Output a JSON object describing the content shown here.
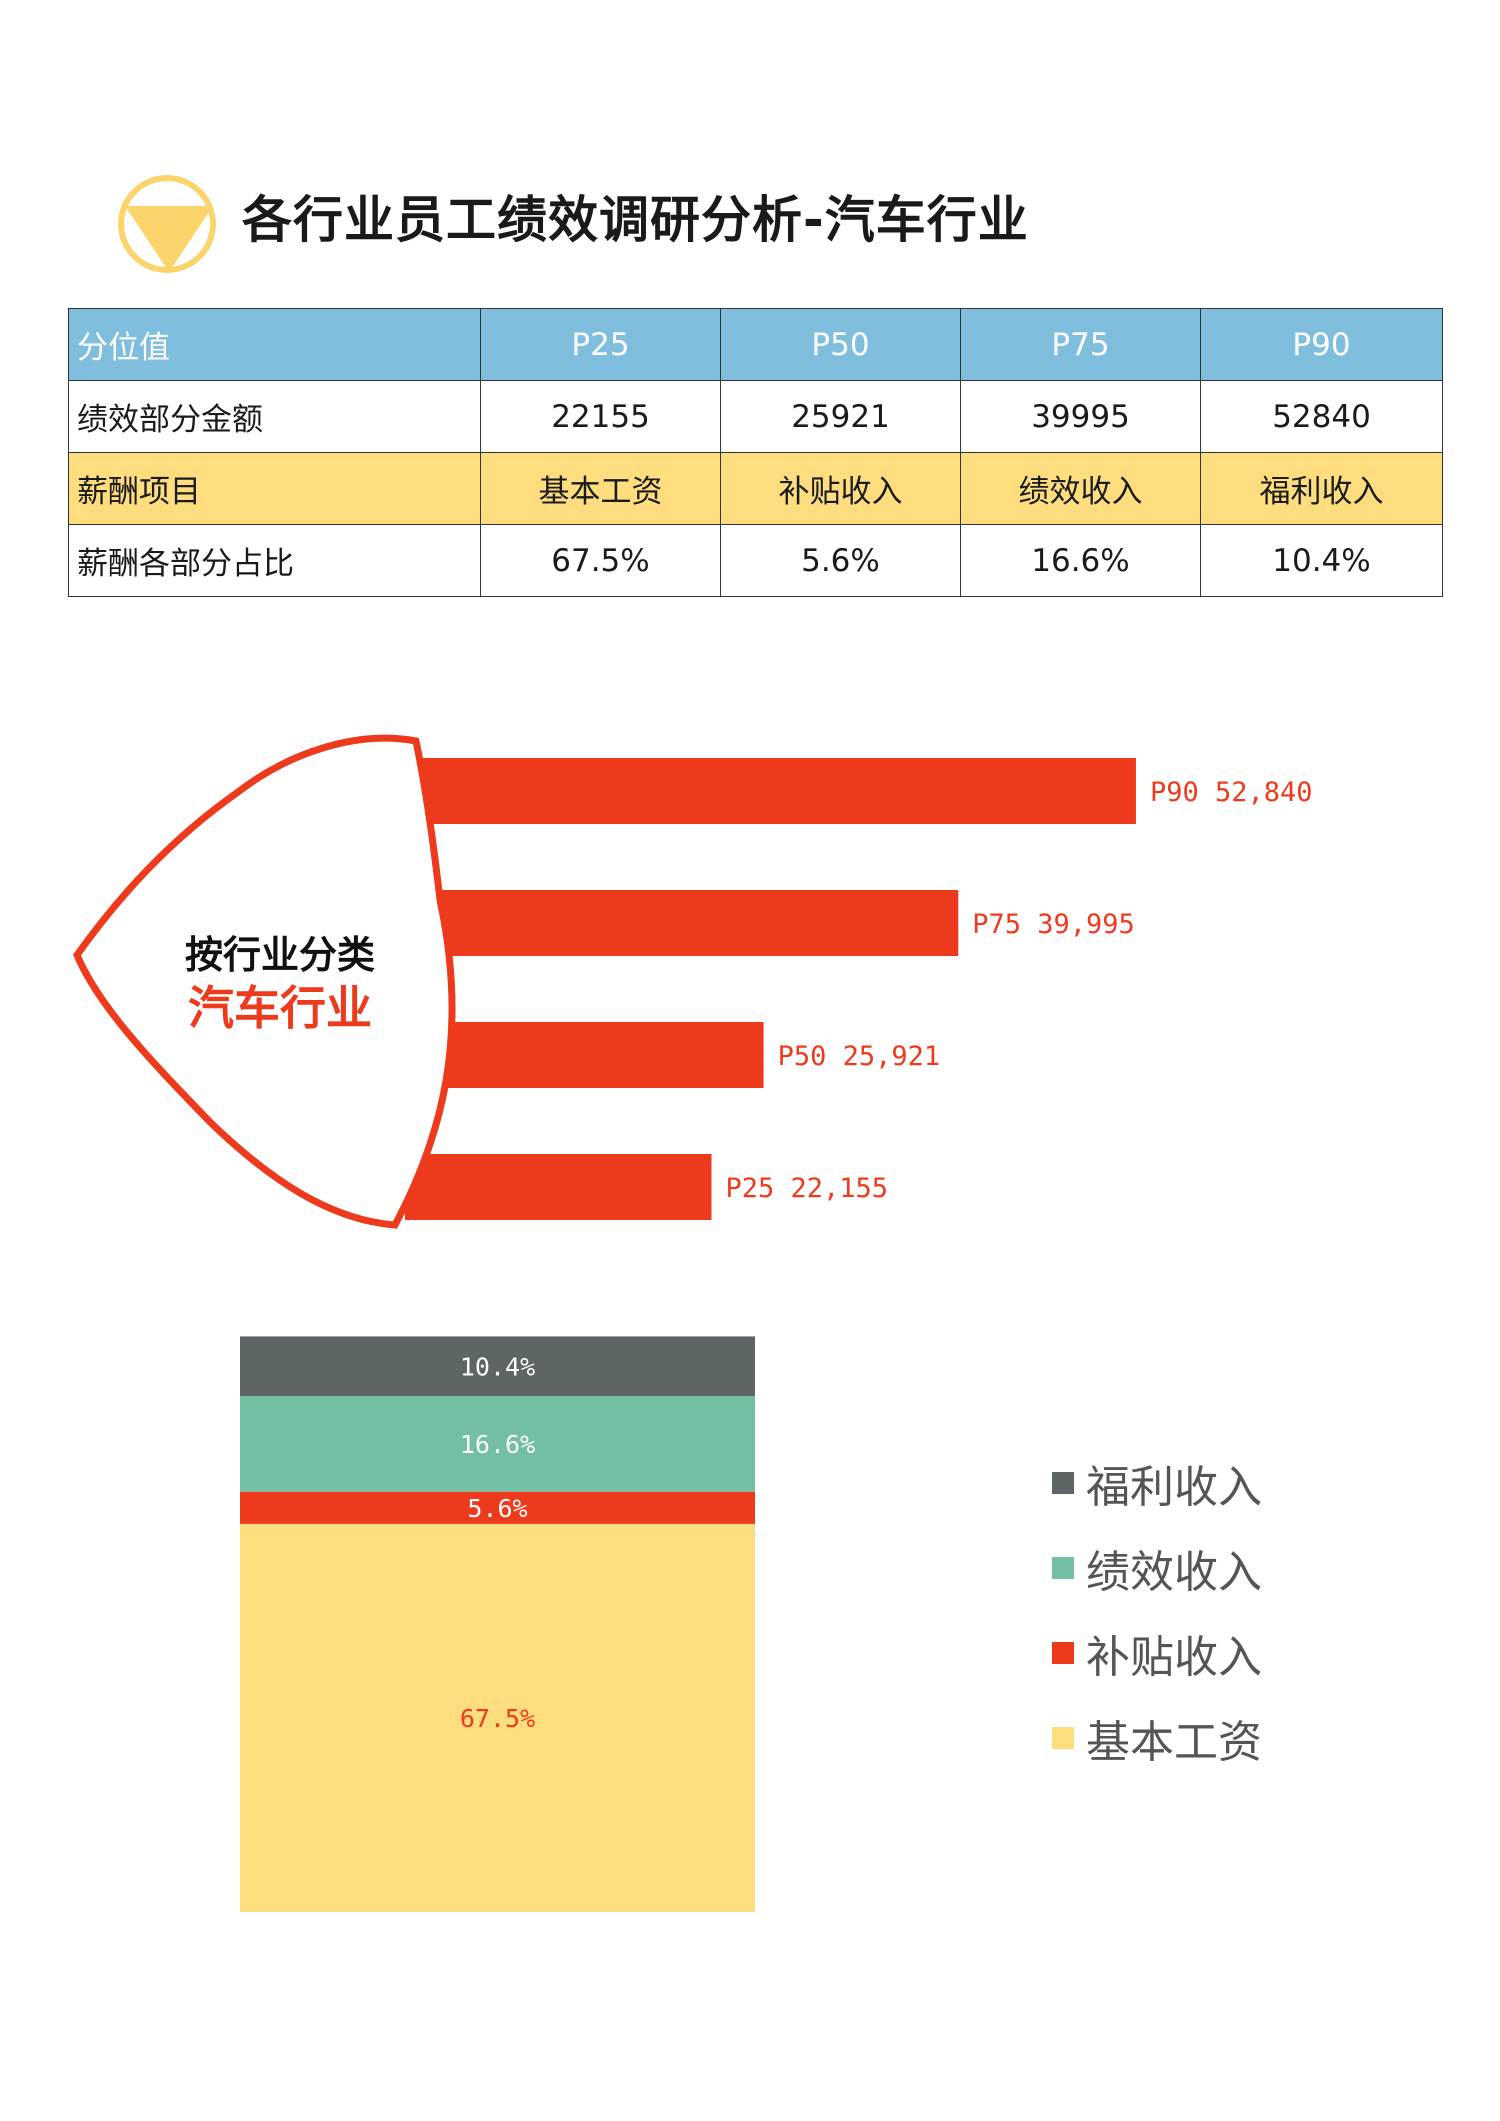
{
  "page": {
    "title": "各行业员工绩效调研分析-汽车行业"
  },
  "table": {
    "rows": [
      {
        "label": "分位值",
        "cells": [
          "P25",
          "P50",
          "P75",
          "P90"
        ]
      },
      {
        "label": "绩效部分金额",
        "cells": [
          "22155",
          "25921",
          "39995",
          "52840"
        ]
      },
      {
        "label": "薪酬项目",
        "cells": [
          "基本工资",
          "补贴收入",
          "绩效收入",
          "福利收入"
        ]
      },
      {
        "label": "薪酬各部分占比",
        "cells": [
          "67.5%",
          "5.6%",
          "16.6%",
          "10.4%"
        ]
      }
    ]
  },
  "colors": {
    "accent_red": "#ee3a1c",
    "table_header": "#7fbedc",
    "table_yellow": "#fddd7e",
    "icon_yellow": "#fbd56b",
    "benefit": "#5e6566",
    "performance": "#72bfa2",
    "subsidy": "#ee3a1c",
    "base": "#fddd7e"
  },
  "chart_data": [
    {
      "type": "bar",
      "orientation": "horizontal",
      "title_lines": [
        "按行业分类",
        "汽车行业"
      ],
      "categories": [
        "P90",
        "P75",
        "P50",
        "P25"
      ],
      "values": [
        52840,
        39995,
        25921,
        22155
      ],
      "data_labels": [
        "P90 52,840",
        "P75 39,995",
        "P50 25,921",
        "P25 22,155"
      ],
      "xlim": [
        0,
        60000
      ],
      "grid": false,
      "color": "#ee3a1c"
    },
    {
      "type": "bar",
      "stacked": true,
      "series": [
        {
          "name": "基本工资",
          "value": 67.5,
          "label": "67.5%",
          "color": "#fddd7e",
          "label_color": "#ee3a1c"
        },
        {
          "name": "补贴收入",
          "value": 5.6,
          "label": "5.6%",
          "color": "#ee3a1c",
          "label_color": "#ffffff"
        },
        {
          "name": "绩效收入",
          "value": 16.6,
          "label": "16.6%",
          "color": "#72bfa2",
          "label_color": "#ffffff"
        },
        {
          "name": "福利收入",
          "value": 10.4,
          "label": "10.4%",
          "color": "#5e6566",
          "label_color": "#ffffff"
        }
      ],
      "ylim": [
        0,
        100
      ],
      "legend": {
        "position": "right",
        "items": [
          "福利收入",
          "绩效收入",
          "补贴收入",
          "基本工资"
        ]
      }
    }
  ]
}
